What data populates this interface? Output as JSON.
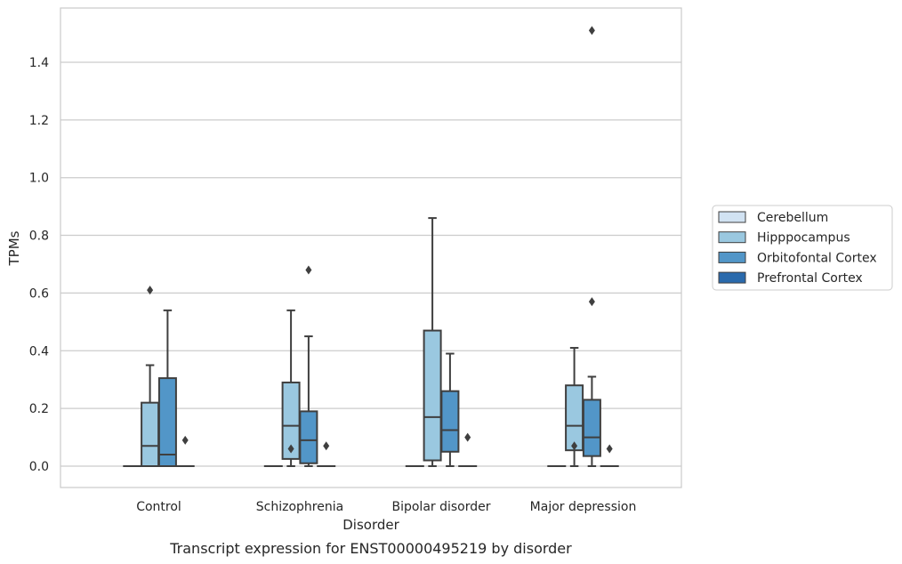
{
  "chart_data": {
    "type": "box",
    "title": "",
    "caption": "Transcript expression for ENST00000495219 by disorder",
    "xlabel": "Disorder",
    "ylabel": "TPMs",
    "ylim": [
      -0.075,
      1.55
    ],
    "yticks": [
      0.0,
      0.2,
      0.4,
      0.6,
      0.8,
      1.0,
      1.2,
      1.4
    ],
    "ytick_labels": [
      "0.0",
      "0.2",
      "0.4",
      "0.6",
      "0.8",
      "1.0",
      "1.2",
      "1.4"
    ],
    "grid": "horizontal",
    "legend_position": "right-outside",
    "categories": [
      "Control",
      "Schizophrenia",
      "Bipolar disorder",
      "Major depression"
    ],
    "series": [
      {
        "name": "Cerebellum",
        "color": "#d1e2f2",
        "boxes": [
          {
            "whisker_low": 0,
            "q1": 0,
            "median": 0,
            "q3": 0,
            "whisker_high": 0,
            "outliers": []
          },
          {
            "whisker_low": 0,
            "q1": 0,
            "median": 0,
            "q3": 0,
            "whisker_high": 0,
            "outliers": []
          },
          {
            "whisker_low": 0,
            "q1": 0,
            "median": 0,
            "q3": 0,
            "whisker_high": 0,
            "outliers": []
          },
          {
            "whisker_low": 0,
            "q1": 0,
            "median": 0,
            "q3": 0,
            "whisker_high": 0,
            "outliers": []
          }
        ]
      },
      {
        "name": "Hipppocampus",
        "color": "#9ac8e0",
        "boxes": [
          {
            "whisker_low": 0,
            "q1": 0,
            "median": 0.07,
            "q3": 0.22,
            "whisker_high": 0.35,
            "outliers": [
              0.61
            ]
          },
          {
            "whisker_low": 0,
            "q1": 0.025,
            "median": 0.14,
            "q3": 0.29,
            "whisker_high": 0.54,
            "outliers": [
              0.06
            ]
          },
          {
            "whisker_low": 0,
            "q1": 0.02,
            "median": 0.17,
            "q3": 0.47,
            "whisker_high": 0.86,
            "outliers": []
          },
          {
            "whisker_low": 0,
            "q1": 0.055,
            "median": 0.14,
            "q3": 0.28,
            "whisker_high": 0.41,
            "outliers": [
              0.07
            ]
          }
        ]
      },
      {
        "name": "Orbitofontal Cortex",
        "color": "#5296c8",
        "boxes": [
          {
            "whisker_low": 0,
            "q1": 0,
            "median": 0.04,
            "q3": 0.305,
            "whisker_high": 0.54,
            "outliers": []
          },
          {
            "whisker_low": 0,
            "q1": 0.01,
            "median": 0.09,
            "q3": 0.19,
            "whisker_high": 0.45,
            "outliers": [
              0.68
            ]
          },
          {
            "whisker_low": 0,
            "q1": 0.05,
            "median": 0.125,
            "q3": 0.26,
            "whisker_high": 0.39,
            "outliers": []
          },
          {
            "whisker_low": 0,
            "q1": 0.035,
            "median": 0.1,
            "q3": 0.23,
            "whisker_high": 0.31,
            "outliers": [
              0.57,
              1.51
            ]
          }
        ]
      },
      {
        "name": "Prefrontal Cortex",
        "color": "#2a6aac",
        "boxes": [
          {
            "whisker_low": 0,
            "q1": 0,
            "median": 0,
            "q3": 0,
            "whisker_high": 0,
            "outliers": [
              0.09
            ]
          },
          {
            "whisker_low": 0,
            "q1": 0,
            "median": 0,
            "q3": 0,
            "whisker_high": 0,
            "outliers": [
              0.07
            ]
          },
          {
            "whisker_low": 0,
            "q1": 0,
            "median": 0,
            "q3": 0,
            "whisker_high": 0,
            "outliers": [
              0.1
            ]
          },
          {
            "whisker_low": 0,
            "q1": 0,
            "median": 0,
            "q3": 0,
            "whisker_high": 0,
            "outliers": [
              0.06
            ]
          }
        ]
      }
    ]
  }
}
